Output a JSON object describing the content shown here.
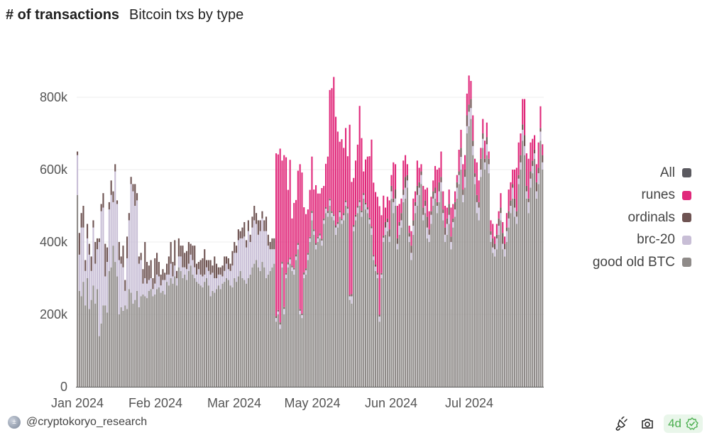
{
  "header": {
    "title": "# of transactions",
    "subtitle": "Bitcoin txs by type"
  },
  "footer": {
    "author": "@cryptokoryo_research",
    "freshness": "4d",
    "icons": [
      "plug-icon",
      "camera-icon",
      "check-badge-icon"
    ]
  },
  "chart_data": {
    "type": "bar",
    "stacked": true,
    "title": "# of transactions",
    "subtitle": "Bitcoin txs by type",
    "xlabel": "",
    "ylabel": "",
    "ylim": [
      0,
      931
    ],
    "y_unit": "thousands",
    "yticks": [
      {
        "value": 0,
        "label": "0"
      },
      {
        "value": 200,
        "label": "200k"
      },
      {
        "value": 400,
        "label": "400k"
      },
      {
        "value": 600,
        "label": "600k"
      },
      {
        "value": 800,
        "label": "800k"
      }
    ],
    "xticks": [
      {
        "index": 0,
        "label": "Jan 2024"
      },
      {
        "index": 31,
        "label": "Feb 2024"
      },
      {
        "index": 63,
        "label": "Mar 2024"
      },
      {
        "index": 94,
        "label": "May 2024"
      },
      {
        "index": 125,
        "label": "Jun 2024"
      },
      {
        "index": 157,
        "label": "Jul 2024"
      }
    ],
    "grid": true,
    "legend_position": "right",
    "legend": [
      {
        "name": "All",
        "color": "#5b5a60"
      },
      {
        "name": "runes",
        "color": "#e0287a"
      },
      {
        "name": "ordinals",
        "color": "#6e5352"
      },
      {
        "name": "brc-20",
        "color": "#c8bed6"
      },
      {
        "name": "good old BTC",
        "color": "#8f8b89"
      }
    ],
    "series": [
      {
        "name": "good old BTC",
        "color": "#8f8b89",
        "values": [
          530,
          265,
          250,
          290,
          225,
          300,
          215,
          240,
          280,
          230,
          270,
          140,
          175,
          225,
          225,
          205,
          320,
          330,
          390,
          345,
          305,
          200,
          220,
          210,
          225,
          215,
          270,
          260,
          230,
          240,
          265,
          220,
          250,
          255,
          250,
          245,
          265,
          270,
          250,
          255,
          270,
          275,
          260,
          265,
          255,
          290,
          280,
          300,
          285,
          305,
          280,
          330,
          320,
          300,
          310,
          295,
          320,
          335,
          310,
          300,
          290,
          285,
          280,
          275,
          290,
          300,
          280,
          250,
          265,
          260,
          270,
          280,
          270,
          285,
          290,
          300,
          295,
          280,
          275,
          300,
          290,
          305,
          320,
          300,
          295,
          285,
          300,
          310,
          330,
          340,
          350,
          330,
          320,
          345,
          330,
          300,
          310,
          320,
          330,
          340,
          180,
          200,
          160,
          330,
          200,
          300,
          330,
          340,
          320,
          310,
          350,
          380,
          200,
          190,
          300,
          310,
          350,
          400,
          460,
          420,
          380,
          400,
          410,
          390,
          450,
          480,
          470,
          500,
          470,
          460,
          420,
          440,
          470,
          450,
          460,
          500,
          480,
          240,
          230,
          430,
          460,
          480,
          500,
          470,
          520,
          490,
          480,
          450,
          420,
          350,
          320,
          300,
          180,
          300,
          400,
          420,
          430,
          400,
          520,
          480,
          500,
          380,
          420,
          440,
          510,
          520,
          550,
          400,
          350,
          420,
          480,
          500,
          530,
          560,
          460,
          480,
          410,
          400,
          450,
          500,
          520,
          480,
          510,
          540,
          460,
          400,
          420,
          450,
          380,
          440,
          470,
          520,
          560,
          600,
          510,
          550,
          700,
          720,
          740,
          640,
          560,
          480,
          460,
          580,
          660,
          600,
          640,
          590,
          400,
          370,
          360,
          380,
          420,
          460,
          380,
          360,
          400,
          440,
          480,
          520,
          470,
          450,
          560,
          600,
          680,
          640,
          520,
          480,
          550,
          590,
          630,
          520,
          560,
          680,
          600
        ]
      },
      {
        "name": "brc-20",
        "color": "#c8bed6",
        "values": [
          110,
          100,
          190,
          150,
          95,
          110,
          150,
          80,
          160,
          110,
          110,
          260,
          310,
          270,
          80,
          140,
          170,
          200,
          120,
          250,
          200,
          150,
          120,
          120,
          40,
          140,
          190,
          300,
          310,
          260,
          250,
          120,
          100,
          30,
          50,
          40,
          30,
          30,
          20,
          30,
          40,
          30,
          20,
          30,
          40,
          20,
          30,
          40,
          20,
          30,
          20,
          30,
          40,
          30,
          20,
          30,
          20,
          30,
          40,
          30,
          20,
          40,
          30,
          30,
          20,
          30,
          40,
          60,
          50,
          40,
          30,
          30,
          40,
          20,
          30,
          40,
          30,
          40,
          60,
          70,
          80,
          100,
          90,
          110,
          120,
          100,
          130,
          90,
          110,
          120,
          100,
          90,
          110,
          120,
          100,
          130,
          80,
          60,
          50,
          40,
          10,
          8,
          12,
          10,
          15,
          10,
          8,
          12,
          10,
          14,
          10,
          12,
          10,
          8,
          10,
          12,
          15,
          10,
          20,
          10,
          12,
          10,
          8,
          14,
          10,
          12,
          10,
          15,
          10,
          12,
          20,
          10,
          12,
          10,
          14,
          10,
          12,
          10,
          20,
          12,
          10,
          15,
          10,
          12,
          10,
          14,
          10,
          12,
          18,
          10,
          12,
          10,
          14,
          10,
          12,
          20,
          25,
          15,
          20,
          30,
          20,
          15,
          25,
          20,
          20,
          30,
          20,
          15,
          20,
          25,
          20,
          30,
          20,
          25,
          15,
          20,
          30,
          20,
          25,
          20,
          15,
          20,
          30,
          25,
          20,
          20,
          30,
          25,
          20,
          15,
          20,
          30,
          25,
          35,
          20,
          30,
          20,
          40,
          30,
          25,
          20,
          30,
          35,
          20,
          25,
          20,
          30,
          25,
          20,
          15,
          20,
          30,
          25,
          20,
          15,
          20,
          30,
          25,
          20,
          30,
          25,
          20,
          15,
          20,
          30,
          25,
          20,
          30,
          25,
          20,
          15,
          20,
          30,
          25,
          20
        ]
      },
      {
        "name": "ordinals",
        "color": "#6e5352",
        "values": [
          10,
          60,
          40,
          60,
          30,
          40,
          30,
          40,
          20,
          60,
          30,
          10,
          20,
          40,
          90,
          40,
          20,
          40,
          30,
          20,
          10,
          50,
          20,
          60,
          30,
          60,
          20,
          20,
          20,
          60,
          20,
          20,
          20,
          40,
          100,
          60,
          40,
          50,
          30,
          70,
          60,
          40,
          30,
          30,
          20,
          30,
          50,
          60,
          40,
          70,
          20,
          50,
          30,
          60,
          40,
          50,
          60,
          30,
          40,
          60,
          30,
          20,
          40,
          50,
          70,
          20,
          30,
          40,
          20,
          60,
          40,
          20,
          20,
          30,
          40,
          20,
          30,
          20,
          40,
          30,
          20,
          30,
          20,
          30,
          40,
          20,
          30,
          20,
          30,
          40,
          30,
          40,
          30,
          20,
          30,
          40,
          30,
          20,
          30,
          30,
          5,
          4,
          6,
          5,
          5,
          4,
          6,
          5,
          5,
          4,
          6,
          5,
          5,
          4,
          6,
          5,
          5,
          4,
          6,
          5,
          5,
          4,
          6,
          5,
          5,
          4,
          6,
          5,
          5,
          4,
          6,
          5,
          5,
          4,
          6,
          5,
          5,
          4,
          6,
          5,
          5,
          4,
          6,
          5,
          5,
          4,
          6,
          5,
          5,
          4,
          6,
          5,
          5,
          4,
          6,
          15,
          10,
          20,
          15,
          10,
          25,
          15,
          10,
          20,
          15,
          30,
          15,
          10,
          20,
          15,
          10,
          25,
          15,
          10,
          20,
          15,
          30,
          15,
          10,
          20,
          15,
          10,
          25,
          15,
          10,
          20,
          15,
          30,
          15,
          10,
          20,
          15,
          10,
          25,
          15,
          20,
          30,
          20,
          25,
          15,
          10,
          20,
          15,
          30,
          15,
          10,
          20,
          15,
          10,
          25,
          15,
          10,
          20,
          15,
          30,
          15,
          10,
          20,
          15,
          10,
          25,
          15,
          10,
          20,
          15,
          30,
          15,
          10,
          20,
          15,
          10,
          25,
          15,
          10,
          20
        ]
      },
      {
        "name": "runes",
        "color": "#e0287a",
        "values": [
          0,
          0,
          0,
          0,
          0,
          0,
          0,
          0,
          0,
          0,
          0,
          0,
          0,
          0,
          0,
          0,
          0,
          0,
          0,
          0,
          0,
          0,
          0,
          0,
          0,
          0,
          0,
          0,
          0,
          0,
          0,
          0,
          0,
          0,
          0,
          0,
          0,
          0,
          0,
          0,
          0,
          0,
          0,
          0,
          0,
          0,
          0,
          0,
          0,
          0,
          0,
          0,
          0,
          0,
          0,
          0,
          0,
          0,
          0,
          0,
          0,
          0,
          0,
          0,
          0,
          0,
          0,
          0,
          0,
          0,
          0,
          0,
          0,
          0,
          0,
          0,
          0,
          0,
          0,
          0,
          0,
          0,
          0,
          0,
          0,
          0,
          0,
          0,
          0,
          0,
          0,
          0,
          0,
          0,
          0,
          0,
          0,
          0,
          0,
          0,
          450,
          430,
          480,
          280,
          420,
          320,
          200,
          270,
          130,
          180,
          150,
          200,
          400,
          390,
          180,
          150,
          120,
          130,
          150,
          110,
          160,
          120,
          110,
          140,
          90,
          120,
          150,
          300,
          340,
          380,
          300,
          250,
          190,
          220,
          180,
          200,
          140,
          470,
          310,
          130,
          150,
          170,
          260,
          200,
          60,
          120,
          140,
          170,
          240,
          200,
          200,
          210,
          300,
          160,
          110,
          40,
          60,
          80,
          30,
          100,
          70,
          90,
          50,
          40,
          80,
          60,
          30,
          20,
          40,
          60,
          30,
          70,
          40,
          20,
          60,
          30,
          80,
          50,
          40,
          30,
          60,
          90,
          40,
          70,
          50,
          60,
          30,
          40,
          80,
          40,
          30,
          20,
          60,
          50,
          70,
          40,
          60,
          80,
          50,
          70,
          40,
          90,
          60,
          30,
          40,
          50,
          40,
          20,
          30,
          40,
          20,
          30,
          20,
          40,
          30,
          20,
          40,
          60,
          50,
          40,
          80,
          120,
          90,
          60,
          70,
          100,
          90,
          110,
          80,
          60,
          40,
          50,
          70,
          60,
          30
        ]
      }
    ]
  }
}
